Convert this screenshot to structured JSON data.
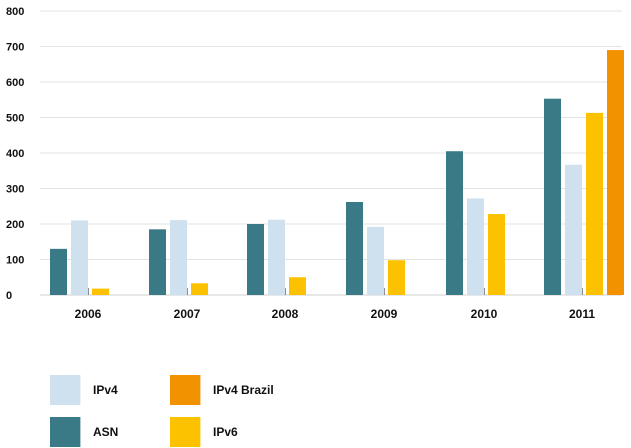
{
  "chart_data": {
    "type": "bar",
    "title": "",
    "xlabel": "",
    "ylabel": "",
    "ylim": [
      0,
      800
    ],
    "yticks": [
      0,
      100,
      200,
      300,
      400,
      500,
      600,
      700,
      800
    ],
    "grid": true,
    "legend_position": "bottom-left",
    "categories": [
      "2006",
      "2007",
      "2008",
      "2009",
      "2010",
      "2011"
    ],
    "series": [
      {
        "name": "ASN",
        "color": "#3a7a86",
        "values": [
          130,
          185,
          200,
          262,
          405,
          553
        ]
      },
      {
        "name": "IPv4",
        "color": "#cfe0ee",
        "values": [
          210,
          211,
          212,
          192,
          272,
          367
        ]
      },
      {
        "name": "IPv6",
        "color": "#fcc200",
        "values": [
          18,
          33,
          50,
          98,
          228,
          513
        ]
      },
      {
        "name": "IPv4 Brazil",
        "color": "#f39200",
        "values": [
          null,
          null,
          null,
          null,
          null,
          690
        ]
      }
    ]
  },
  "legend": {
    "items": [
      {
        "label": "IPv4",
        "color": "#cfe0ee"
      },
      {
        "label": "IPv4 Brazil",
        "color": "#f39200"
      },
      {
        "label": "ASN",
        "color": "#3a7a86"
      },
      {
        "label": "IPv6",
        "color": "#fcc200"
      }
    ]
  }
}
